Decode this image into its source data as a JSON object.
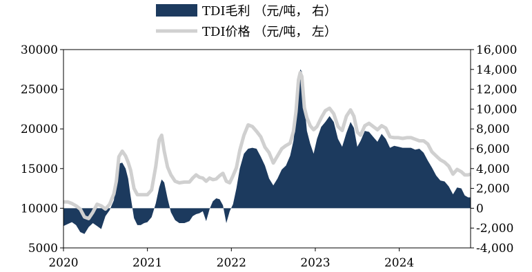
{
  "chart_data": {
    "type": "area",
    "legend": {
      "placement": "top-center",
      "entries": [
        {
          "label": "TDI毛利 （元/吨， 右）",
          "color": "#1c3a5e",
          "kind": "area"
        },
        {
          "label": "TDI价格 （元/吨， 左）",
          "color": "#d0d0d0",
          "kind": "line"
        }
      ]
    },
    "x_tick_labels": [
      "2020",
      "2021",
      "2022",
      "2023",
      "2024"
    ],
    "x_ticks": [
      2020.0,
      2021.0,
      2022.0,
      2023.0,
      2024.0
    ],
    "xlim": [
      2020.0,
      2024.85
    ],
    "y_left": {
      "ylim": [
        5000,
        30000
      ],
      "tick_values": [
        5000,
        10000,
        15000,
        20000,
        25000,
        30000
      ],
      "tick_labels": [
        "5000",
        "10000",
        "15000",
        "20000",
        "25000",
        "30000"
      ]
    },
    "y_right": {
      "ylim": [
        -4000,
        16000
      ],
      "tick_values": [
        -4000,
        -2000,
        0,
        2000,
        4000,
        6000,
        8000,
        10000,
        12000,
        14000,
        16000
      ],
      "tick_labels": [
        "-4,000",
        "-2,000",
        "0",
        "2,000",
        "4,000",
        "6,000",
        "8,000",
        "10,000",
        "12,000",
        "14,000",
        "16,000"
      ]
    },
    "grid": false,
    "series": [
      {
        "name": "TDI毛利 （元/吨， 右）",
        "axis": "right",
        "color": "#1c3a5e",
        "points": [
          [
            2020.0,
            -1800
          ],
          [
            2020.05,
            -1600
          ],
          [
            2020.1,
            -1400
          ],
          [
            2020.15,
            -1700
          ],
          [
            2020.2,
            -2400
          ],
          [
            2020.25,
            -2600
          ],
          [
            2020.3,
            -1900
          ],
          [
            2020.35,
            -1500
          ],
          [
            2020.4,
            -1800
          ],
          [
            2020.45,
            -2100
          ],
          [
            2020.5,
            -800
          ],
          [
            2020.55,
            -200
          ],
          [
            2020.6,
            800
          ],
          [
            2020.63,
            2500
          ],
          [
            2020.66,
            4500
          ],
          [
            2020.7,
            4600
          ],
          [
            2020.74,
            4000
          ],
          [
            2020.77,
            3000
          ],
          [
            2020.8,
            1200
          ],
          [
            2020.84,
            -1000
          ],
          [
            2020.88,
            -1700
          ],
          [
            2020.92,
            -1700
          ],
          [
            2020.96,
            -1500
          ],
          [
            2021.0,
            -1400
          ],
          [
            2021.05,
            -900
          ],
          [
            2021.1,
            500
          ],
          [
            2021.14,
            2100
          ],
          [
            2021.17,
            2900
          ],
          [
            2021.2,
            2600
          ],
          [
            2021.24,
            1000
          ],
          [
            2021.28,
            -400
          ],
          [
            2021.33,
            -1200
          ],
          [
            2021.38,
            -1500
          ],
          [
            2021.44,
            -1500
          ],
          [
            2021.5,
            -1300
          ],
          [
            2021.54,
            -800
          ],
          [
            2021.58,
            -600
          ],
          [
            2021.62,
            -500
          ],
          [
            2021.66,
            -300
          ],
          [
            2021.7,
            -1300
          ],
          [
            2021.74,
            -100
          ],
          [
            2021.78,
            700
          ],
          [
            2021.82,
            1000
          ],
          [
            2021.86,
            900
          ],
          [
            2021.9,
            300
          ],
          [
            2021.94,
            -1500
          ],
          [
            2021.98,
            -300
          ],
          [
            2022.02,
            400
          ],
          [
            2022.06,
            2000
          ],
          [
            2022.1,
            4000
          ],
          [
            2022.15,
            5500
          ],
          [
            2022.2,
            6000
          ],
          [
            2022.25,
            6100
          ],
          [
            2022.3,
            6000
          ],
          [
            2022.35,
            5200
          ],
          [
            2022.4,
            4300
          ],
          [
            2022.45,
            3000
          ],
          [
            2022.5,
            2300
          ],
          [
            2022.55,
            3000
          ],
          [
            2022.6,
            3900
          ],
          [
            2022.65,
            4300
          ],
          [
            2022.7,
            5300
          ],
          [
            2022.74,
            6800
          ],
          [
            2022.77,
            9000
          ],
          [
            2022.8,
            12700
          ],
          [
            2022.82,
            14000
          ],
          [
            2022.84,
            13800
          ],
          [
            2022.87,
            10500
          ],
          [
            2022.9,
            7800
          ],
          [
            2022.94,
            6500
          ],
          [
            2022.98,
            5500
          ],
          [
            2023.02,
            7000
          ],
          [
            2023.07,
            8200
          ],
          [
            2023.12,
            8700
          ],
          [
            2023.17,
            9300
          ],
          [
            2023.22,
            8700
          ],
          [
            2023.27,
            7000
          ],
          [
            2023.32,
            6200
          ],
          [
            2023.37,
            7600
          ],
          [
            2023.42,
            8700
          ],
          [
            2023.46,
            8100
          ],
          [
            2023.5,
            6200
          ],
          [
            2023.54,
            6800
          ],
          [
            2023.59,
            7800
          ],
          [
            2023.64,
            7700
          ],
          [
            2023.69,
            7200
          ],
          [
            2023.74,
            6700
          ],
          [
            2023.79,
            7500
          ],
          [
            2023.84,
            7000
          ],
          [
            2023.89,
            6100
          ],
          [
            2023.94,
            6300
          ],
          [
            2023.99,
            6200
          ],
          [
            2024.04,
            6100
          ],
          [
            2024.09,
            6100
          ],
          [
            2024.14,
            6100
          ],
          [
            2024.19,
            5900
          ],
          [
            2024.24,
            6000
          ],
          [
            2024.29,
            5600
          ],
          [
            2024.34,
            4800
          ],
          [
            2024.39,
            4100
          ],
          [
            2024.44,
            3300
          ],
          [
            2024.49,
            2800
          ],
          [
            2024.54,
            2700
          ],
          [
            2024.59,
            2200
          ],
          [
            2024.64,
            1400
          ],
          [
            2024.69,
            2100
          ],
          [
            2024.74,
            2000
          ],
          [
            2024.78,
            1300
          ],
          [
            2024.82,
            1100
          ],
          [
            2024.85,
            1100
          ]
        ]
      },
      {
        "name": "TDI价格 （元/吨， 左）",
        "axis": "left",
        "color": "#d0d0d0",
        "points": [
          [
            2020.0,
            10800
          ],
          [
            2020.05,
            10800
          ],
          [
            2020.1,
            10600
          ],
          [
            2020.15,
            10300
          ],
          [
            2020.2,
            9900
          ],
          [
            2020.25,
            8900
          ],
          [
            2020.3,
            8700
          ],
          [
            2020.35,
            9500
          ],
          [
            2020.4,
            10500
          ],
          [
            2020.45,
            10300
          ],
          [
            2020.5,
            9900
          ],
          [
            2020.55,
            10500
          ],
          [
            2020.6,
            11800
          ],
          [
            2020.63,
            13400
          ],
          [
            2020.66,
            16500
          ],
          [
            2020.7,
            17200
          ],
          [
            2020.74,
            16600
          ],
          [
            2020.77,
            15800
          ],
          [
            2020.8,
            14800
          ],
          [
            2020.84,
            12500
          ],
          [
            2020.88,
            11700
          ],
          [
            2020.92,
            11700
          ],
          [
            2020.96,
            11700
          ],
          [
            2021.0,
            11700
          ],
          [
            2021.05,
            12300
          ],
          [
            2021.1,
            15300
          ],
          [
            2021.14,
            18600
          ],
          [
            2021.17,
            19200
          ],
          [
            2021.2,
            17200
          ],
          [
            2021.24,
            15200
          ],
          [
            2021.28,
            14200
          ],
          [
            2021.33,
            13400
          ],
          [
            2021.38,
            13200
          ],
          [
            2021.44,
            13300
          ],
          [
            2021.5,
            13300
          ],
          [
            2021.54,
            13800
          ],
          [
            2021.58,
            14200
          ],
          [
            2021.62,
            13900
          ],
          [
            2021.66,
            13800
          ],
          [
            2021.7,
            13400
          ],
          [
            2021.74,
            13800
          ],
          [
            2021.78,
            13600
          ],
          [
            2021.82,
            13700
          ],
          [
            2021.86,
            14100
          ],
          [
            2021.9,
            14400
          ],
          [
            2021.94,
            13400
          ],
          [
            2021.98,
            13200
          ],
          [
            2022.02,
            14100
          ],
          [
            2022.06,
            15100
          ],
          [
            2022.1,
            17300
          ],
          [
            2022.15,
            19200
          ],
          [
            2022.2,
            20500
          ],
          [
            2022.25,
            20300
          ],
          [
            2022.3,
            19700
          ],
          [
            2022.35,
            19000
          ],
          [
            2022.4,
            17700
          ],
          [
            2022.45,
            17000
          ],
          [
            2022.5,
            15700
          ],
          [
            2022.55,
            16600
          ],
          [
            2022.6,
            17500
          ],
          [
            2022.65,
            17900
          ],
          [
            2022.7,
            18200
          ],
          [
            2022.74,
            19700
          ],
          [
            2022.77,
            22200
          ],
          [
            2022.8,
            26200
          ],
          [
            2022.82,
            27100
          ],
          [
            2022.84,
            26600
          ],
          [
            2022.87,
            22700
          ],
          [
            2022.9,
            21400
          ],
          [
            2022.94,
            20400
          ],
          [
            2022.98,
            19900
          ],
          [
            2023.02,
            20300
          ],
          [
            2023.07,
            21400
          ],
          [
            2023.12,
            22300
          ],
          [
            2023.17,
            22600
          ],
          [
            2023.22,
            21900
          ],
          [
            2023.27,
            20300
          ],
          [
            2023.32,
            19800
          ],
          [
            2023.37,
            21600
          ],
          [
            2023.42,
            22400
          ],
          [
            2023.46,
            21600
          ],
          [
            2023.5,
            19600
          ],
          [
            2023.54,
            19200
          ],
          [
            2023.59,
            20400
          ],
          [
            2023.64,
            20700
          ],
          [
            2023.69,
            20300
          ],
          [
            2023.74,
            19900
          ],
          [
            2023.79,
            20400
          ],
          [
            2023.84,
            20100
          ],
          [
            2023.89,
            19000
          ],
          [
            2023.94,
            18900
          ],
          [
            2023.99,
            18900
          ],
          [
            2024.04,
            18800
          ],
          [
            2024.09,
            18900
          ],
          [
            2024.14,
            18900
          ],
          [
            2024.19,
            18700
          ],
          [
            2024.24,
            18500
          ],
          [
            2024.29,
            18500
          ],
          [
            2024.34,
            18100
          ],
          [
            2024.39,
            17100
          ],
          [
            2024.44,
            16600
          ],
          [
            2024.49,
            16100
          ],
          [
            2024.54,
            15800
          ],
          [
            2024.59,
            15300
          ],
          [
            2024.64,
            14300
          ],
          [
            2024.69,
            14900
          ],
          [
            2024.74,
            14600
          ],
          [
            2024.78,
            14200
          ],
          [
            2024.82,
            14200
          ],
          [
            2024.85,
            14300
          ]
        ]
      }
    ]
  }
}
